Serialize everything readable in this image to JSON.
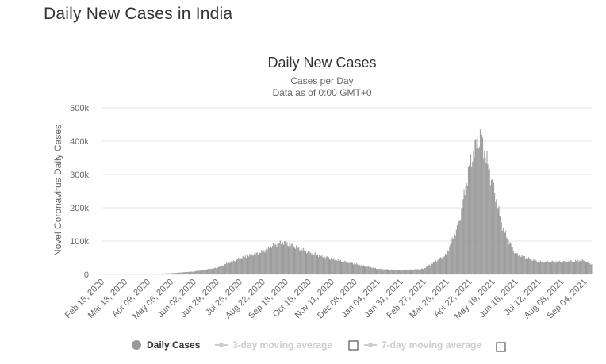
{
  "page": {
    "title": "Daily New Cases in India"
  },
  "colors": {
    "bars": "#999999",
    "grid": "#e6e6e6",
    "legend_active": "#333333",
    "legend_inactive": "#cccccc"
  },
  "legend": {
    "items": [
      {
        "label": "Daily Cases",
        "active": true,
        "marker": "circle"
      },
      {
        "label": "3-day moving average",
        "active": false,
        "marker": "line-dot",
        "checkbox": true
      },
      {
        "label": "7-day moving average",
        "active": false,
        "marker": "line-dot",
        "checkbox": true
      }
    ]
  },
  "chart_data": {
    "type": "bar",
    "title": "Daily New Cases",
    "subtitle_lines": [
      "Cases per Day",
      "Data as of 0:00 GMT+0"
    ],
    "ylabel": "Novel Coronavirus Daily Cases",
    "xlabel": "",
    "ylim": [
      0,
      500000
    ],
    "yticks": [
      0,
      100000,
      200000,
      300000,
      400000,
      500000
    ],
    "ytick_labels": [
      "0",
      "100k",
      "200k",
      "300k",
      "400k",
      "500k"
    ],
    "xticks": [
      {
        "date": "2020-02-15",
        "label": "Feb 15, 2020"
      },
      {
        "date": "2020-03-13",
        "label": "Mar 13, 2020"
      },
      {
        "date": "2020-04-09",
        "label": "Apr 09, 2020"
      },
      {
        "date": "2020-05-06",
        "label": "May 06, 2020"
      },
      {
        "date": "2020-06-02",
        "label": "Jun 02, 2020"
      },
      {
        "date": "2020-06-29",
        "label": "Jun 29, 2020"
      },
      {
        "date": "2020-07-26",
        "label": "Jul 26, 2020"
      },
      {
        "date": "2020-08-22",
        "label": "Aug 22, 2020"
      },
      {
        "date": "2020-09-18",
        "label": "Sep 18, 2020"
      },
      {
        "date": "2020-10-15",
        "label": "Oct 15, 2020"
      },
      {
        "date": "2020-11-11",
        "label": "Nov 11, 2020"
      },
      {
        "date": "2020-12-08",
        "label": "Dec 08, 2020"
      },
      {
        "date": "2021-01-04",
        "label": "Jan 04, 2021"
      },
      {
        "date": "2021-01-31",
        "label": "Jan 31, 2021"
      },
      {
        "date": "2021-02-27",
        "label": "Feb 27, 2021"
      },
      {
        "date": "2021-03-26",
        "label": "Mar 26, 2021"
      },
      {
        "date": "2021-04-22",
        "label": "Apr 22, 2021"
      },
      {
        "date": "2021-05-19",
        "label": "May 19, 2021"
      },
      {
        "date": "2021-06-15",
        "label": "Jun 15, 2021"
      },
      {
        "date": "2021-07-12",
        "label": "Jul 12, 2021"
      },
      {
        "date": "2021-08-08",
        "label": "Aug 08, 2021"
      },
      {
        "date": "2021-09-04",
        "label": "Sep 04, 2021"
      }
    ],
    "x_range": [
      "2020-02-15",
      "2021-09-13"
    ],
    "grid": true,
    "legend_position": "bottom",
    "series": [
      {
        "name": "Daily Cases",
        "x_start": "2020-02-15",
        "x_end": "2021-09-13",
        "interval": "daily",
        "keypoints": [
          [
            "2020-02-15",
            0
          ],
          [
            "2020-03-13",
            10
          ],
          [
            "2020-04-09",
            600
          ],
          [
            "2020-05-06",
            3500
          ],
          [
            "2020-06-02",
            8500
          ],
          [
            "2020-06-29",
            19500
          ],
          [
            "2020-07-26",
            48000
          ],
          [
            "2020-08-22",
            68000
          ],
          [
            "2020-09-05",
            88000
          ],
          [
            "2020-09-16",
            96000
          ],
          [
            "2020-09-25",
            87000
          ],
          [
            "2020-10-15",
            66000
          ],
          [
            "2020-11-11",
            47000
          ],
          [
            "2020-12-08",
            32000
          ],
          [
            "2021-01-04",
            17000
          ],
          [
            "2021-01-31",
            12000
          ],
          [
            "2021-02-27",
            16500
          ],
          [
            "2021-03-26",
            59000
          ],
          [
            "2021-04-10",
            150000
          ],
          [
            "2021-04-22",
            320000
          ],
          [
            "2021-05-01",
            395000
          ],
          [
            "2021-05-06",
            412000
          ],
          [
            "2021-05-19",
            275000
          ],
          [
            "2021-06-01",
            135000
          ],
          [
            "2021-06-15",
            62000
          ],
          [
            "2021-07-12",
            38000
          ],
          [
            "2021-08-08",
            38000
          ],
          [
            "2021-09-04",
            42000
          ],
          [
            "2021-09-13",
            30000
          ]
        ]
      }
    ]
  }
}
